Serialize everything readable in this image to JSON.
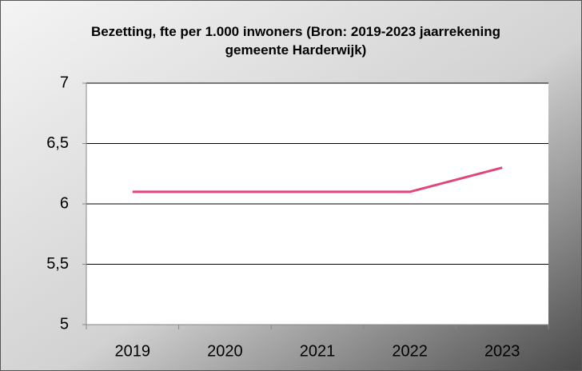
{
  "chart_data": {
    "type": "line",
    "title": "Bezetting, fte per 1.000 inwoners (Bron: 2019-2023 jaarrekening gemeente Harderwijk)",
    "categories": [
      "2019",
      "2020",
      "2021",
      "2022",
      "2023"
    ],
    "series": [
      {
        "name": "Bezetting",
        "color": "#e0457b",
        "values": [
          6.1,
          6.1,
          6.1,
          6.1,
          6.3
        ]
      }
    ],
    "ylim": [
      5,
      7
    ],
    "yticks": [
      5,
      {
        "value": 5.5,
        "label": "5,5"
      },
      6,
      {
        "value": 6.5,
        "label": "6,5"
      },
      7
    ],
    "grid": true
  }
}
